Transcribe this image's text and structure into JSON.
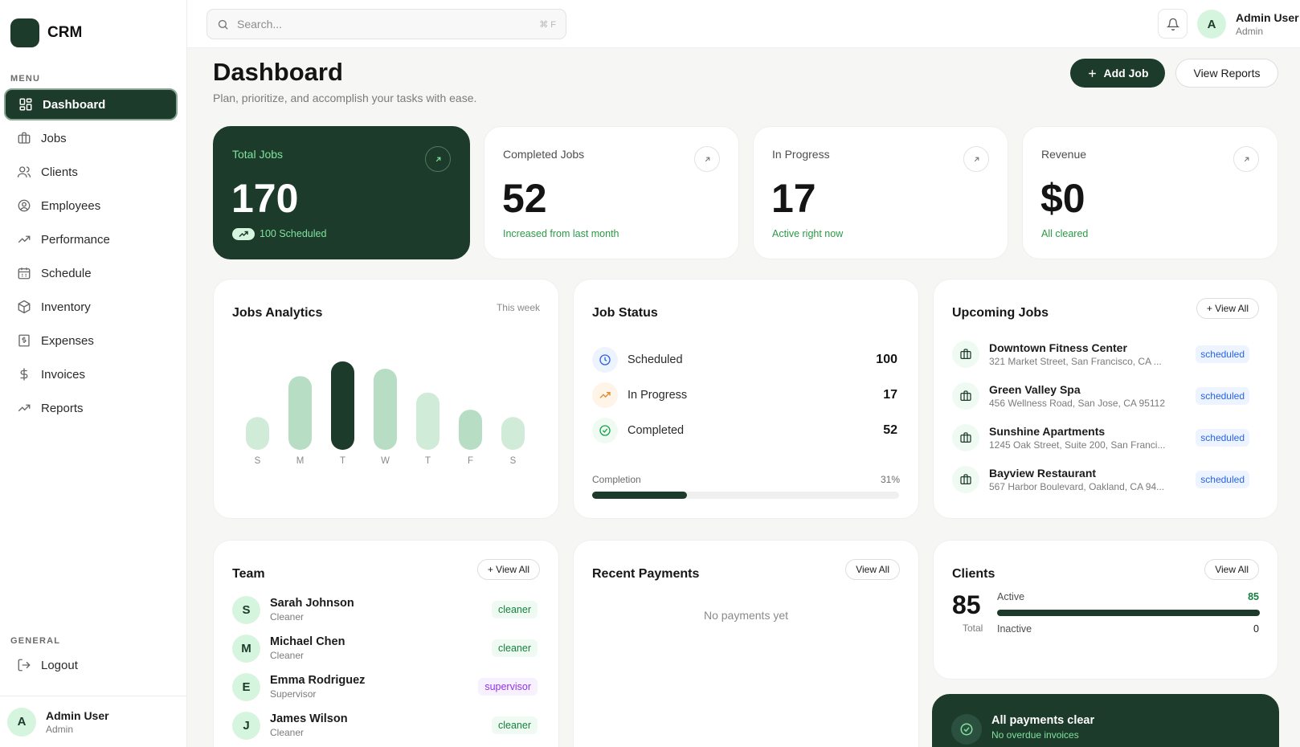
{
  "brand": {
    "name": "CRM"
  },
  "sidebar": {
    "menu_label": "MENU",
    "items": [
      {
        "label": "Dashboard",
        "icon": "dashboard-icon",
        "active": true
      },
      {
        "label": "Jobs",
        "icon": "briefcase-icon"
      },
      {
        "label": "Clients",
        "icon": "users-icon"
      },
      {
        "label": "Employees",
        "icon": "user-circle-icon"
      },
      {
        "label": "Performance",
        "icon": "trending-up-icon"
      },
      {
        "label": "Schedule",
        "icon": "calendar-icon"
      },
      {
        "label": "Inventory",
        "icon": "package-icon"
      },
      {
        "label": "Expenses",
        "icon": "receipt-icon"
      },
      {
        "label": "Invoices",
        "icon": "dollar-icon"
      },
      {
        "label": "Reports",
        "icon": "chart-line-icon"
      }
    ],
    "general_label": "GENERAL",
    "logout_label": "Logout",
    "user": {
      "initial": "A",
      "name": "Admin User",
      "role": "Admin"
    }
  },
  "topbar": {
    "search_placeholder": "Search...",
    "shortcut": "⌘ F",
    "user": {
      "initial": "A",
      "name": "Admin User",
      "role": "Admin"
    }
  },
  "header": {
    "title": "Dashboard",
    "subtitle": "Plan, prioritize, and accomplish your tasks with ease.",
    "add_job_label": "Add Job",
    "view_reports_label": "View Reports"
  },
  "stats": [
    {
      "label": "Total Jobs",
      "value": "170",
      "note": "100 Scheduled"
    },
    {
      "label": "Completed Jobs",
      "value": "52",
      "note": "Increased from last month"
    },
    {
      "label": "In Progress",
      "value": "17",
      "note": "Active right now"
    },
    {
      "label": "Revenue",
      "value": "$0",
      "note": "All cleared"
    }
  ],
  "analytics": {
    "title": "Jobs Analytics",
    "period": "This week",
    "chart_data": {
      "type": "bar",
      "categories": [
        "S",
        "M",
        "T",
        "W",
        "T",
        "F",
        "S"
      ],
      "values": [
        40,
        90,
        108,
        99,
        70,
        49,
        40
      ],
      "highlight_index": 2,
      "colors": [
        "#d1ebd9",
        "#b7dec4",
        "#1d3b2a",
        "#b7dec4",
        "#d1ebd9",
        "#b7dec4",
        "#d1ebd9"
      ]
    }
  },
  "job_status": {
    "title": "Job Status",
    "rows": [
      {
        "label": "Scheduled",
        "count": "100",
        "icon": "clock-icon"
      },
      {
        "label": "In Progress",
        "count": "17",
        "icon": "trending-up-icon"
      },
      {
        "label": "Completed",
        "count": "52",
        "icon": "check-circle-icon"
      }
    ],
    "completion_label": "Completion",
    "completion_pct": "31%",
    "completion_value": 0.31
  },
  "upcoming": {
    "title": "Upcoming Jobs",
    "view_all": "+ View All",
    "jobs": [
      {
        "name": "Downtown Fitness Center",
        "address": "321 Market Street, San Francisco, CA ...",
        "status": "scheduled"
      },
      {
        "name": "Green Valley Spa",
        "address": "456 Wellness Road, San Jose, CA 95112",
        "status": "scheduled"
      },
      {
        "name": "Sunshine Apartments",
        "address": "1245 Oak Street, Suite 200, San Franci...",
        "status": "scheduled"
      },
      {
        "name": "Bayview Restaurant",
        "address": "567 Harbor Boulevard, Oakland, CA 94...",
        "status": "scheduled"
      }
    ]
  },
  "team": {
    "title": "Team",
    "view_all": "+ View All",
    "members": [
      {
        "initial": "S",
        "name": "Sarah Johnson",
        "role": "Cleaner",
        "badge": "cleaner"
      },
      {
        "initial": "M",
        "name": "Michael Chen",
        "role": "Cleaner",
        "badge": "cleaner"
      },
      {
        "initial": "E",
        "name": "Emma Rodriguez",
        "role": "Supervisor",
        "badge": "supervisor"
      },
      {
        "initial": "J",
        "name": "James Wilson",
        "role": "Cleaner",
        "badge": "cleaner"
      }
    ]
  },
  "payments": {
    "title": "Recent Payments",
    "view_all": "View All",
    "empty": "No payments yet"
  },
  "clients": {
    "title": "Clients",
    "view_all": "View All",
    "total": "85",
    "total_label": "Total",
    "active_label": "Active",
    "active_count": "85",
    "inactive_label": "Inactive",
    "inactive_count": "0",
    "active_fraction": 1.0
  },
  "banner": {
    "title": "All payments clear",
    "subtitle": "No overdue invoices"
  }
}
